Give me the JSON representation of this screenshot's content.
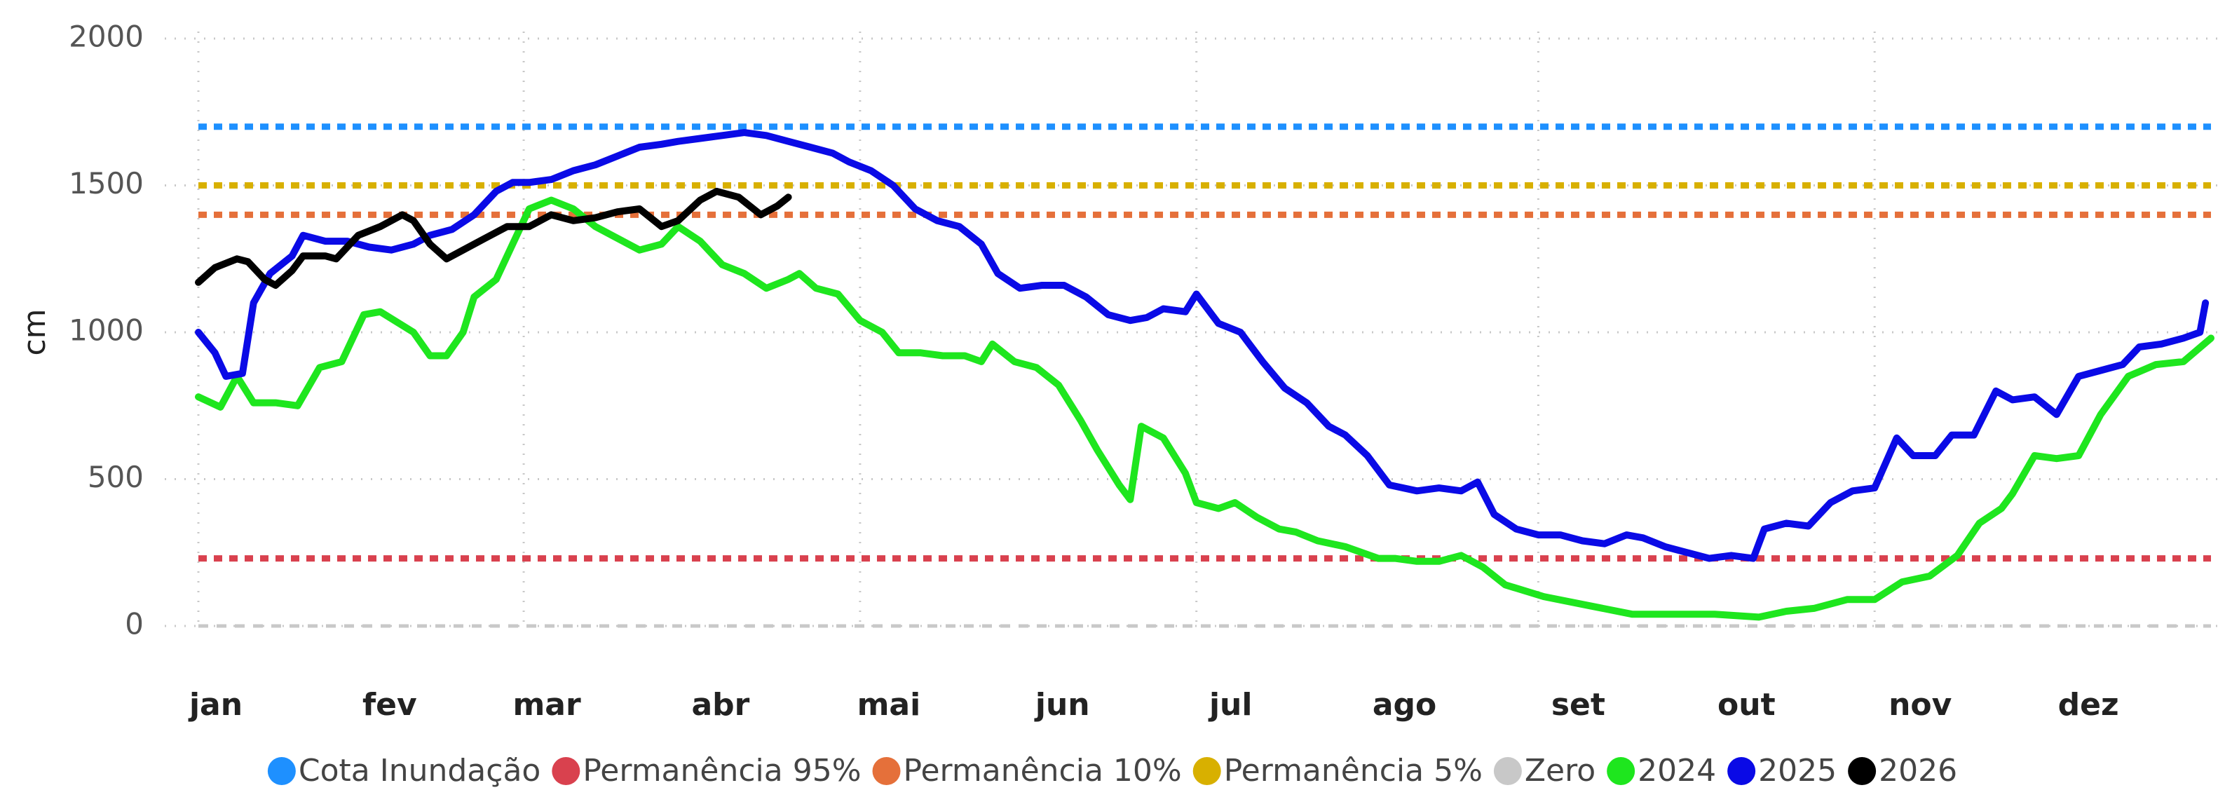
{
  "chart_data": {
    "type": "line",
    "y_label": "cm",
    "xlim": [
      1,
      366
    ],
    "ylim": [
      0,
      2000
    ],
    "yticks": [
      0,
      500,
      1000,
      1500,
      2000
    ],
    "grid": true,
    "xticks": [
      {
        "value": 1,
        "label": "jan"
      },
      {
        "value": 32,
        "label": "fev"
      },
      {
        "value": 60,
        "label": "mar"
      },
      {
        "value": 91,
        "label": "abr"
      },
      {
        "value": 121,
        "label": "mai"
      },
      {
        "value": 152,
        "label": "jun"
      },
      {
        "value": 182,
        "label": "jul"
      },
      {
        "value": 213,
        "label": "ago"
      },
      {
        "value": 244,
        "label": "set"
      },
      {
        "value": 274,
        "label": "out"
      },
      {
        "value": 305,
        "label": "nov"
      },
      {
        "value": 335,
        "label": "dez"
      }
    ],
    "legend": "bottom",
    "series": [
      {
        "name": "Cota Inundação",
        "color": "#1e90ff",
        "value": 1700,
        "dashed": true
      },
      {
        "name": "Permanência 95%",
        "color": "#d9414e",
        "value": 230,
        "dashed": true
      },
      {
        "name": "Permanência 10%",
        "color": "#e5703a",
        "value": 1400,
        "dashed": true
      },
      {
        "name": "Permanência 5%",
        "color": "#d8b000",
        "value": 1500,
        "dashed": true
      },
      {
        "name": "Zero",
        "color": "#c8c8c8",
        "value": 0,
        "dashed": true
      },
      {
        "name": "2024",
        "color": "#1ee61e",
        "x": [
          1,
          5,
          8,
          11,
          15,
          19,
          23,
          27,
          31,
          34,
          40,
          43,
          46,
          49,
          51,
          55,
          58,
          61,
          65,
          69,
          73,
          77,
          81,
          85,
          88,
          92,
          96,
          100,
          104,
          108,
          110,
          113,
          117,
          121,
          125,
          128,
          132,
          136,
          140,
          143,
          145,
          149,
          153,
          157,
          161,
          164,
          168,
          170,
          172,
          176,
          180,
          182,
          186,
          189,
          193,
          197,
          200,
          204,
          209,
          215,
          218,
          222,
          226,
          230,
          234,
          238,
          245,
          253,
          261,
          269,
          276,
          284,
          289,
          294,
          300,
          305,
          310,
          315,
          320,
          324,
          328,
          330,
          334,
          338,
          342,
          346,
          351,
          356,
          361,
          366
        ],
        "values": [
          780,
          745,
          850,
          760,
          760,
          750,
          880,
          900,
          1060,
          1070,
          1000,
          920,
          920,
          1000,
          1120,
          1180,
          1300,
          1420,
          1450,
          1420,
          1360,
          1320,
          1280,
          1300,
          1360,
          1310,
          1230,
          1200,
          1150,
          1180,
          1200,
          1150,
          1130,
          1040,
          1000,
          930,
          930,
          920,
          920,
          900,
          960,
          900,
          880,
          820,
          700,
          600,
          480,
          430,
          680,
          640,
          520,
          420,
          400,
          420,
          370,
          330,
          320,
          290,
          270,
          230,
          230,
          220,
          220,
          240,
          200,
          140,
          100,
          70,
          40,
          40,
          40,
          30,
          50,
          60,
          90,
          90,
          150,
          170,
          240,
          350,
          400,
          450,
          580,
          570,
          580,
          720,
          850,
          890,
          900,
          980
        ]
      },
      {
        "name": "2025",
        "color": "#0a0ae6",
        "x": [
          1,
          4,
          6,
          9,
          11,
          14,
          18,
          20,
          24,
          28,
          32,
          36,
          40,
          43,
          47,
          51,
          55,
          58,
          61,
          65,
          69,
          73,
          77,
          81,
          85,
          88,
          92,
          96,
          100,
          104,
          108,
          112,
          116,
          119,
          123,
          127,
          131,
          135,
          139,
          143,
          146,
          150,
          154,
          158,
          162,
          166,
          170,
          173,
          176,
          180,
          182,
          186,
          190,
          194,
          198,
          202,
          206,
          209,
          213,
          217,
          222,
          226,
          230,
          233,
          236,
          240,
          244,
          248,
          252,
          256,
          260,
          263,
          267,
          271,
          275,
          279,
          283,
          285,
          289,
          293,
          297,
          301,
          305,
          309,
          312,
          316,
          319,
          323,
          327,
          330,
          334,
          338,
          342,
          346,
          350,
          353,
          357,
          361,
          364,
          365
        ],
        "values": [
          1000,
          930,
          850,
          860,
          1100,
          1200,
          1260,
          1330,
          1310,
          1310,
          1290,
          1280,
          1300,
          1330,
          1350,
          1400,
          1480,
          1510,
          1510,
          1520,
          1550,
          1570,
          1600,
          1630,
          1640,
          1650,
          1660,
          1670,
          1680,
          1670,
          1650,
          1630,
          1610,
          1580,
          1550,
          1500,
          1420,
          1380,
          1360,
          1300,
          1200,
          1150,
          1160,
          1160,
          1120,
          1060,
          1040,
          1050,
          1080,
          1070,
          1130,
          1030,
          1000,
          900,
          810,
          760,
          680,
          650,
          580,
          480,
          460,
          470,
          460,
          490,
          380,
          330,
          310,
          310,
          290,
          280,
          310,
          300,
          270,
          250,
          230,
          240,
          230,
          330,
          350,
          340,
          420,
          460,
          470,
          640,
          580,
          580,
          650,
          650,
          800,
          770,
          780,
          720,
          850,
          870,
          890,
          950,
          960,
          980,
          1000,
          1100
        ]
      },
      {
        "name": "2026",
        "color": "#000000",
        "x": [
          1,
          4,
          8,
          10,
          13,
          15,
          18,
          20,
          24,
          26,
          30,
          34,
          38,
          40,
          43,
          46,
          49,
          53,
          57,
          61,
          65,
          69,
          73,
          77,
          81,
          85,
          88,
          92,
          95,
          99,
          103,
          106,
          108
        ],
        "values": [
          1170,
          1220,
          1250,
          1240,
          1180,
          1160,
          1210,
          1260,
          1260,
          1250,
          1330,
          1360,
          1400,
          1380,
          1300,
          1250,
          1280,
          1320,
          1360,
          1360,
          1400,
          1380,
          1390,
          1410,
          1420,
          1360,
          1380,
          1450,
          1480,
          1460,
          1400,
          1430,
          1460
        ]
      }
    ]
  }
}
